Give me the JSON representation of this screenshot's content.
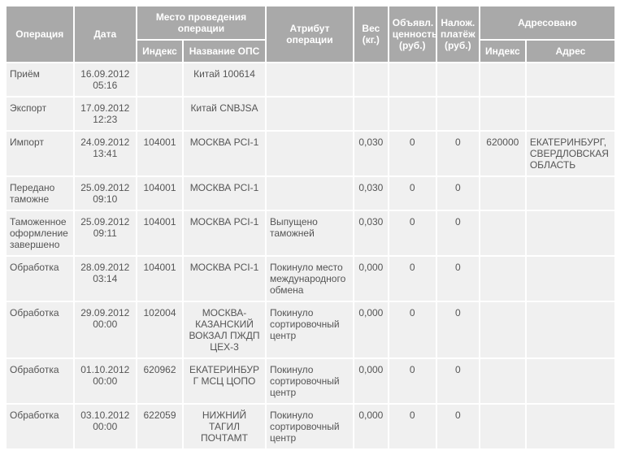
{
  "headers": {
    "operation": "Операция",
    "date": "Дата",
    "place_group": "Место проведения операции",
    "place_index": "Индекс",
    "place_name": "Название ОПС",
    "attribute": "Атрибут операции",
    "weight": "Вес (кг.)",
    "declared": "Объявл. ценность (руб.)",
    "cod": "Налож. платёж (руб.)",
    "addressed_group": "Адресовано",
    "addr_index": "Индекс",
    "addr": "Адрес"
  },
  "rows": [
    {
      "op": "Приём",
      "date": "16.09.2012 05:16",
      "idx": "",
      "ops": "Китай 100614",
      "attr": "",
      "wt": "",
      "val": "",
      "cod": "",
      "aidx": "",
      "addr": ""
    },
    {
      "op": "Экспорт",
      "date": "17.09.2012 12:23",
      "idx": "",
      "ops": "Китай CNBJSA",
      "attr": "",
      "wt": "",
      "val": "",
      "cod": "",
      "aidx": "",
      "addr": ""
    },
    {
      "op": "Импорт",
      "date": "24.09.2012 13:41",
      "idx": "104001",
      "ops": "МОСКВА PCI-1",
      "attr": "",
      "wt": "0,030",
      "val": "0",
      "cod": "0",
      "aidx": "620000",
      "addr": "ЕКАТЕРИНБУРГ, СВЕРДЛОВСКАЯ ОБЛАСТЬ"
    },
    {
      "op": "Передано таможне",
      "date": "25.09.2012 09:10",
      "idx": "104001",
      "ops": "МОСКВА PCI-1",
      "attr": "",
      "wt": "0,030",
      "val": "0",
      "cod": "0",
      "aidx": "",
      "addr": ""
    },
    {
      "op": "Таможенное оформление завершено",
      "date": "25.09.2012 09:11",
      "idx": "104001",
      "ops": "МОСКВА PCI-1",
      "attr": "Выпущено таможней",
      "wt": "0,030",
      "val": "0",
      "cod": "0",
      "aidx": "",
      "addr": ""
    },
    {
      "op": "Обработка",
      "date": "28.09.2012 03:14",
      "idx": "104001",
      "ops": "МОСКВА PCI-1",
      "attr": "Покинуло место международного обмена",
      "wt": "0,000",
      "val": "0",
      "cod": "0",
      "aidx": "",
      "addr": ""
    },
    {
      "op": "Обработка",
      "date": "29.09.2012 00:00",
      "idx": "102004",
      "ops": "МОСКВА-КАЗАНСКИЙ ВОКЗАЛ ПЖДП ЦЕХ-3",
      "attr": "Покинуло сортировочный центр",
      "wt": "0,000",
      "val": "0",
      "cod": "0",
      "aidx": "",
      "addr": ""
    },
    {
      "op": "Обработка",
      "date": "01.10.2012 00:00",
      "idx": "620962",
      "ops": "ЕКАТЕРИНБУРГ МСЦ ЦОПО",
      "attr": "Покинуло сортировочный центр",
      "wt": "0,000",
      "val": "0",
      "cod": "0",
      "aidx": "",
      "addr": ""
    },
    {
      "op": "Обработка",
      "date": "03.10.2012 00:00",
      "idx": "622059",
      "ops": "НИЖНИЙ ТАГИЛ ПОЧТАМТ",
      "attr": "Покинуло сортировочный центр",
      "wt": "0,000",
      "val": "0",
      "cod": "0",
      "aidx": "",
      "addr": ""
    }
  ]
}
